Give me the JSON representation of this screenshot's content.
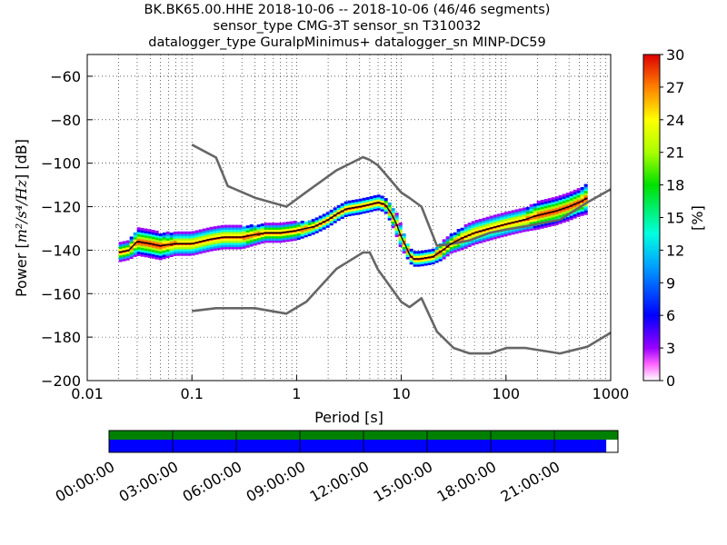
{
  "header": {
    "line1": "BK.BK65.00.HHE   2018-10-06 -- 2018-10-06  (46/46 segments)",
    "line2": "sensor_type CMG-3T sensor_sn T310032",
    "line3": "datalogger_type GuralpMinimus+ datalogger_sn MINP-DC59"
  },
  "chart_data": {
    "type": "heatmap",
    "title": "BK.BK65.00.HHE   2018-10-06 -- 2018-10-06  (46/46 segments)",
    "xlabel": "Period [s]",
    "ylabel": "Power [m²/s⁴/Hz] [dB]",
    "ylabel_prefix": "Power ",
    "ylabel_units": "m²/s⁴/Hz",
    "ylabel_suffix": " [dB]",
    "x_scale": "log",
    "xlim": [
      0.01,
      1000
    ],
    "ylim": [
      -200,
      -50
    ],
    "x_ticks": [
      0.01,
      0.1,
      1,
      10,
      100,
      1000
    ],
    "x_tick_labels": [
      "0.01",
      "0.1",
      "1",
      "10",
      "100",
      "1000"
    ],
    "y_ticks": [
      -200,
      -180,
      -160,
      -140,
      -120,
      -100,
      -80,
      -60
    ],
    "y_tick_labels": [
      "−200",
      "−180",
      "−160",
      "−140",
      "−120",
      "−100",
      "−80",
      "−60"
    ],
    "grid": true,
    "colorbar": {
      "label": "[%]",
      "range": [
        0,
        30
      ],
      "ticks": [
        "0",
        "3",
        "6",
        "9",
        "12",
        "15",
        "18",
        "21",
        "24",
        "27",
        "30"
      ]
    },
    "series": [
      {
        "name": "NHNM",
        "color": "#666666",
        "x": [
          0.1,
          0.17,
          0.22,
          0.4,
          0.8,
          1.24,
          2.4,
          4.3,
          5,
          6,
          10,
          12,
          15.6,
          21.9,
          31.6,
          45,
          70,
          101,
          154,
          328,
          600,
          1000
        ],
        "y": [
          -91.5,
          -97.4,
          -110.5,
          -115.9,
          -120.0,
          -113.2,
          -103.3,
          -97.2,
          -98.5,
          -101.0,
          -113.5,
          -116.0,
          -120.0,
          -138.0,
          -137.0,
          -135.5,
          -132.0,
          -130.5,
          -129.0,
          -126.0,
          -118.0,
          -112.0
        ]
      },
      {
        "name": "NLNM",
        "color": "#666666",
        "x": [
          0.1,
          0.17,
          0.4,
          0.8,
          1.24,
          2.4,
          4.3,
          5,
          6,
          10,
          12,
          15.6,
          21.9,
          31.6,
          45,
          70,
          101,
          154,
          328,
          600,
          1000
        ],
        "y": [
          -168.0,
          -166.7,
          -166.7,
          -169.2,
          -163.7,
          -148.6,
          -141.1,
          -141.1,
          -149.0,
          -163.8,
          -166.2,
          -162.1,
          -177.5,
          -185.0,
          -187.5,
          -187.5,
          -185.0,
          -185.0,
          -187.5,
          -184.4,
          -178.0
        ]
      },
      {
        "name": "mode",
        "color": "#000000",
        "x": [
          0.02,
          0.025,
          0.03,
          0.04,
          0.05,
          0.07,
          0.1,
          0.15,
          0.2,
          0.3,
          0.5,
          0.7,
          1.0,
          1.5,
          2.0,
          2.5,
          3.0,
          4.0,
          5.0,
          6.0,
          7.0,
          8.0,
          9.0,
          10.0,
          11.0,
          12.0,
          13.0,
          15.0,
          20.0,
          25.0,
          30.0,
          40.0,
          50.0,
          70.0,
          100.0,
          150.0,
          200.0,
          300.0,
          400.0,
          500.0,
          600.0
        ],
        "y": [
          -141,
          -140,
          -136,
          -137,
          -138,
          -137,
          -137,
          -135,
          -134,
          -134,
          -132,
          -132,
          -131,
          -129,
          -126,
          -123,
          -121,
          -120,
          -119,
          -118,
          -119,
          -123,
          -128,
          -134,
          -138,
          -142,
          -144,
          -144,
          -143,
          -140,
          -137,
          -134,
          -132,
          -130,
          -128,
          -126,
          -124,
          -122,
          -120,
          -118,
          -116
        ]
      },
      {
        "name": "spread",
        "x": [
          0.02,
          0.025,
          0.03,
          0.04,
          0.05,
          0.07,
          0.1,
          0.15,
          0.2,
          0.3,
          0.5,
          0.7,
          1.0,
          1.5,
          2.0,
          2.5,
          3.0,
          4.0,
          5.0,
          6.0,
          7.0,
          8.0,
          9.0,
          10.0,
          11.0,
          12.0,
          13.0,
          15.0,
          20.0,
          25.0,
          30.0,
          40.0,
          50.0,
          70.0,
          100.0,
          150.0,
          200.0,
          300.0,
          400.0,
          500.0,
          600.0
        ],
        "dy": [
          4,
          4,
          6,
          6,
          6,
          5,
          5,
          5,
          5,
          5,
          4,
          4,
          4,
          3,
          3,
          3,
          3,
          3,
          3,
          3,
          3,
          4,
          5,
          5,
          4,
          3,
          3,
          3,
          3,
          4,
          4,
          5,
          5,
          5,
          5,
          5,
          6,
          6,
          6,
          6,
          7
        ]
      }
    ]
  },
  "timeline": {
    "labels": [
      "00:00:00",
      "03:00:00",
      "06:00:00",
      "09:00:00",
      "12:00:00",
      "15:00:00",
      "18:00:00",
      "21:00:00"
    ],
    "coverage_end_fraction": 0.977,
    "top_color": "#008000",
    "coverage_color": "#0000ff"
  }
}
